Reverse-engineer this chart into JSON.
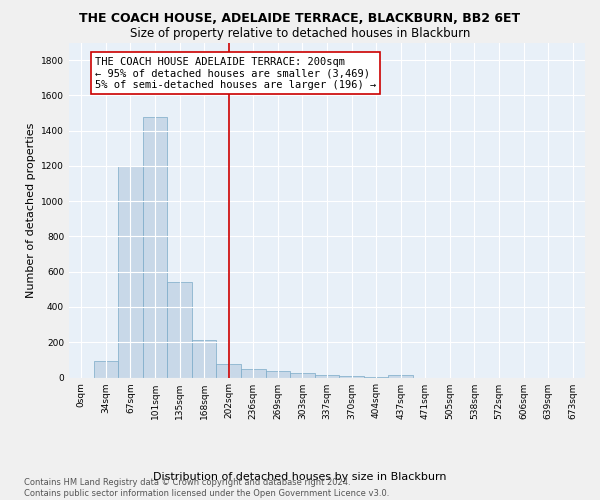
{
  "title": "THE COACH HOUSE, ADELAIDE TERRACE, BLACKBURN, BB2 6ET",
  "subtitle": "Size of property relative to detached houses in Blackburn",
  "xlabel": "Distribution of detached houses by size in Blackburn",
  "ylabel": "Number of detached properties",
  "bar_labels": [
    "0sqm",
    "34sqm",
    "67sqm",
    "101sqm",
    "135sqm",
    "168sqm",
    "202sqm",
    "236sqm",
    "269sqm",
    "303sqm",
    "337sqm",
    "370sqm",
    "404sqm",
    "437sqm",
    "471sqm",
    "505sqm",
    "538sqm",
    "572sqm",
    "606sqm",
    "639sqm",
    "673sqm"
  ],
  "bar_values": [
    0,
    95,
    1200,
    1480,
    540,
    210,
    75,
    48,
    38,
    28,
    15,
    8,
    3,
    15,
    0,
    0,
    0,
    0,
    0,
    0,
    0
  ],
  "bar_color": "#c8d8e8",
  "bar_edgecolor": "#7aaac8",
  "bar_width": 1.0,
  "vline_color": "#cc0000",
  "annotation_text": "THE COACH HOUSE ADELAIDE TERRACE: 200sqm\n← 95% of detached houses are smaller (3,469)\n5% of semi-detached houses are larger (196) →",
  "annotation_box_color": "#ffffff",
  "annotation_box_edgecolor": "#cc0000",
  "ylim": [
    0,
    1900
  ],
  "yticks": [
    0,
    200,
    400,
    600,
    800,
    1000,
    1200,
    1400,
    1600,
    1800
  ],
  "bg_color": "#e8f0f8",
  "fig_color": "#f0f0f0",
  "footer_text": "Contains HM Land Registry data © Crown copyright and database right 2024.\nContains public sector information licensed under the Open Government Licence v3.0.",
  "title_fontsize": 9,
  "subtitle_fontsize": 8.5,
  "xlabel_fontsize": 8,
  "ylabel_fontsize": 8,
  "tick_fontsize": 6.5,
  "annotation_fontsize": 7.5,
  "footer_fontsize": 6
}
